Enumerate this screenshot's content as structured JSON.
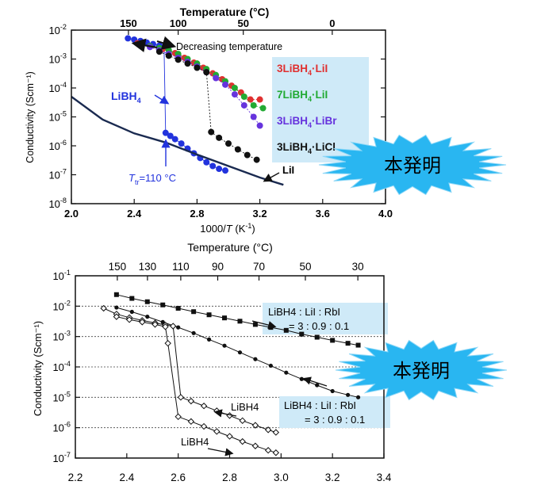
{
  "burst_label": "本発明",
  "chart_data": [
    {
      "type": "scatter",
      "yscale": "log",
      "xlabel": "1000/T (K⁻¹)",
      "ylabel": "Conductivity (Scm⁻¹)",
      "top_axis_label": "Temperature (°C)",
      "xlim": [
        2.0,
        4.0
      ],
      "ylim": [
        1e-08,
        0.01
      ],
      "x_ticks": [
        2.0,
        2.4,
        2.8,
        3.2,
        3.6,
        4.0
      ],
      "x_tick_labels": [
        "2.0",
        "2.4",
        "2.8",
        "3.2",
        "3.6",
        "4.0"
      ],
      "y_tick_labels": [
        "10-8",
        "10-7",
        "10-6",
        "10-5",
        "10-4",
        "10-3",
        "10-2"
      ],
      "top_ticks_celsius": [
        150,
        100,
        50,
        0
      ],
      "top_tick_labels": [
        "150",
        "100",
        "50",
        "0"
      ],
      "annotations": {
        "decreasing": "Decreasing temperature",
        "ttr_prefix": "T",
        "ttr_sub": "tr",
        "ttr_value": "=110 °C",
        "libh4": "LiBH",
        "libh4_sub": "4",
        "lii": "LiI"
      },
      "series": [
        {
          "name": "LiBH4",
          "label_main": "LiBH",
          "label_sub": "4",
          "color": "#2233dd",
          "x": [
            2.36,
            2.4,
            2.44,
            2.48,
            2.52,
            2.56,
            2.59,
            2.6,
            2.63,
            2.66,
            2.7,
            2.74,
            2.78,
            2.82,
            2.86,
            2.9,
            2.94,
            2.98
          ],
          "y": [
            0.0052,
            0.0047,
            0.0042,
            0.0037,
            0.0033,
            0.0029,
            0.0027,
            2.8e-06,
            2.2e-06,
            1.7e-06,
            1.2e-06,
            8e-07,
            5.5e-07,
            3.8e-07,
            2.7e-07,
            2e-07,
            1.6e-07,
            1.4e-07
          ]
        },
        {
          "name": "3LiBH4·LiI",
          "label_main": "3LiBH",
          "label_sub": "4",
          "label_tail": "·LiI",
          "color": "#e03030",
          "x": [
            2.42,
            2.5,
            2.58,
            2.66,
            2.72,
            2.78,
            2.84,
            2.9,
            2.96,
            3.02,
            3.08,
            3.14,
            3.2
          ],
          "y": [
            0.0035,
            0.0028,
            0.0022,
            0.0016,
            0.0011,
            0.00075,
            0.0005,
            0.00032,
            0.0002,
            0.00012,
            7e-05,
            4e-05,
            4e-05
          ]
        },
        {
          "name": "7LiBH4·LiI",
          "label_main": "7LiBH",
          "label_sub": "4",
          "label_tail": "·LiI",
          "color": "#22aa33",
          "x": [
            2.5,
            2.56,
            2.62,
            2.68,
            2.74,
            2.8,
            2.86,
            2.92,
            2.98,
            3.04,
            3.1,
            3.16,
            3.22
          ],
          "y": [
            0.0028,
            0.0024,
            0.002,
            0.0015,
            0.001,
            0.0007,
            0.00045,
            0.00028,
            0.00017,
            0.0001,
            5e-05,
            2.5e-05,
            2e-05
          ]
        },
        {
          "name": "3LiBH4·LiBr",
          "label_main": "3LiBH",
          "label_sub": "4",
          "label_tail": "·LiBr",
          "color": "#6633dd",
          "x": [
            2.44,
            2.5,
            2.56,
            2.62,
            2.68,
            2.74,
            2.8,
            2.86,
            2.92,
            2.98,
            3.04,
            3.1,
            3.16,
            3.2
          ],
          "y": [
            0.0032,
            0.0026,
            0.002,
            0.0015,
            0.0011,
            0.0008,
            0.00055,
            0.00035,
            0.00022,
            0.00013,
            6e-05,
            2.5e-05,
            1e-05,
            5e-06
          ]
        },
        {
          "name": "3LiBH4·LiCl",
          "label_main": "3LiBH",
          "label_sub": "4",
          "label_tail": "·LiCl",
          "color": "#111111",
          "x": [
            2.56,
            2.62,
            2.68,
            2.74,
            2.8,
            2.86,
            2.89,
            2.94,
            3.0,
            3.06,
            3.12,
            3.18
          ],
          "y": [
            0.0018,
            0.0013,
            0.00095,
            0.0007,
            0.0005,
            0.00035,
            3e-06,
            1.9e-06,
            1.2e-06,
            7.5e-07,
            4.8e-07,
            3.3e-07
          ]
        },
        {
          "name": "LiI",
          "label_main": "LiI",
          "color": "#1a2a50",
          "line_only": true,
          "x": [
            2.0,
            2.2,
            2.4,
            2.6,
            2.8,
            3.0,
            3.2,
            3.35
          ],
          "y": [
            5e-05,
            8e-06,
            2.7e-06,
            1.3e-06,
            5e-07,
            2e-07,
            8e-08,
            4.5e-08
          ]
        }
      ]
    },
    {
      "type": "line",
      "yscale": "log",
      "xlabel": "",
      "ylabel": "Conductivity (Scm⁻¹)",
      "top_axis_label": "Temperature (°C)",
      "xlim": [
        2.2,
        3.4
      ],
      "ylim": [
        1e-07,
        0.1
      ],
      "x_ticks": [
        2.2,
        2.4,
        2.6,
        2.8,
        3.0,
        3.2,
        3.4
      ],
      "x_tick_labels": [
        "2.2",
        "2.4",
        "2.6",
        "2.8",
        "3.0",
        "3.2",
        "3.4"
      ],
      "y_tick_labels": [
        "10-7",
        "10-6",
        "10-5",
        "10-4",
        "10-3",
        "10-2",
        "10-1"
      ],
      "top_ticks_celsius": [
        150,
        130,
        110,
        90,
        70,
        50,
        30
      ],
      "top_tick_labels": [
        "150",
        "130",
        "110",
        "90",
        "70",
        "50",
        "30"
      ],
      "grid": "horizontal-dotted",
      "annotations": {
        "ratio_box_1_line1": "LiBH4 : LiI : RbI",
        "ratio_box_1_line2": "= 3 : 0.9 : 0.1",
        "ratio_box_2_line1": "LiBH4 : LiI : RbI",
        "ratio_box_2_line2": "= 3 : 0.9 : 0.1",
        "libh4_a": "LiBH4",
        "libh4_b": "LiBH4"
      },
      "series": [
        {
          "name": "LiBH4:LiI:RbI (squares)",
          "marker": "square",
          "x": [
            2.36,
            2.42,
            2.48,
            2.54,
            2.6,
            2.66,
            2.72,
            2.78,
            2.84,
            2.9,
            2.96,
            3.02,
            3.08,
            3.14,
            3.2,
            3.26,
            3.3
          ],
          "y": [
            0.024,
            0.018,
            0.014,
            0.011,
            0.0085,
            0.0066,
            0.0052,
            0.0041,
            0.0032,
            0.0025,
            0.002,
            0.0016,
            0.0012,
            0.00095,
            0.00075,
            0.0006,
            0.00052
          ]
        },
        {
          "name": "LiBH4:LiI:RbI (circles)",
          "marker": "circle",
          "x": [
            2.36,
            2.42,
            2.48,
            2.54,
            2.6,
            2.66,
            2.72,
            2.78,
            2.84,
            2.9,
            2.96,
            3.02,
            3.08,
            3.14,
            3.2,
            3.26,
            3.3
          ],
          "y": [
            0.009,
            0.0065,
            0.0045,
            0.003,
            0.002,
            0.0013,
            0.0008,
            0.0005,
            0.0003,
            0.00018,
            0.00011,
            6.5e-05,
            4e-05,
            2.5e-05,
            1.6e-05,
            1.2e-05,
            1e-05
          ]
        },
        {
          "name": "LiBH4 (diamonds, upper)",
          "marker": "diamond",
          "x": [
            2.31,
            2.36,
            2.41,
            2.46,
            2.51,
            2.55,
            2.58,
            2.61,
            2.65,
            2.7,
            2.75,
            2.8,
            2.85,
            2.9,
            2.95,
            2.98
          ],
          "y": [
            0.0085,
            0.0055,
            0.0042,
            0.0034,
            0.0028,
            0.0024,
            0.0022,
            1e-05,
            7.5e-06,
            5.2e-06,
            3.6e-06,
            2.5e-06,
            1.7e-06,
            1.2e-06,
            8.5e-07,
            7e-07
          ]
        },
        {
          "name": "LiBH4 (diamonds, lower)",
          "marker": "diamond",
          "x": [
            2.36,
            2.41,
            2.46,
            2.51,
            2.55,
            2.56,
            2.6,
            2.65,
            2.7,
            2.75,
            2.8,
            2.85,
            2.9,
            2.95,
            2.98
          ],
          "y": [
            0.0045,
            0.0036,
            0.003,
            0.0025,
            0.0021,
            0.0006,
            2.3e-06,
            1.6e-06,
            1.1e-06,
            7.5e-07,
            5.2e-07,
            3.5e-07,
            2.5e-07,
            1.8e-07,
            1.5e-07
          ]
        }
      ]
    }
  ]
}
